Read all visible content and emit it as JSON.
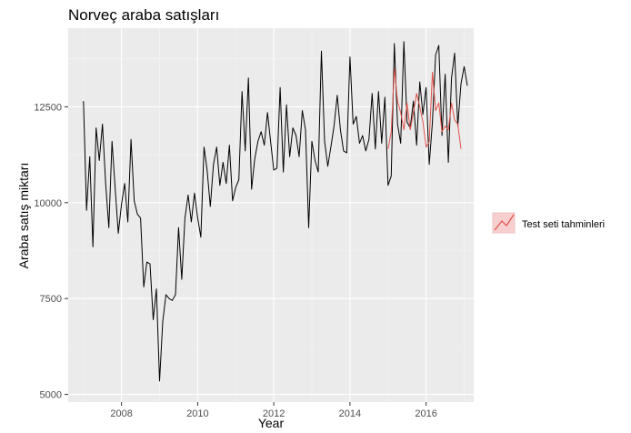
{
  "chart_data": {
    "type": "line",
    "title": "Norveç araba satışları",
    "xlabel": "Year",
    "ylabel": "Araba satış miktarı",
    "xlim": [
      2006.6,
      2017.25
    ],
    "ylim": [
      4800,
      14550
    ],
    "x_ticks": [
      2008,
      2010,
      2012,
      2014,
      2016
    ],
    "x_tick_labels": [
      "2008",
      "2010",
      "2012",
      "2014",
      "2016"
    ],
    "y_ticks": [
      5000,
      7500,
      10000,
      12500
    ],
    "y_tick_labels": [
      "5000",
      "7500",
      "10000",
      "12500"
    ],
    "grid": true,
    "legend_position": "right",
    "legend_entries": [
      "Test seti tahminleri"
    ],
    "colors": {
      "panel": "#ebebeb",
      "grid_major": "#ffffff",
      "grid_minor": "#f5f5f5",
      "actual": "#000000",
      "forecast": "#e0524a",
      "legend_key_fill": "#f7cfcf"
    },
    "series": [
      {
        "start": 2007,
        "step": 0.08333,
        "values": [
          12650,
          9800,
          11200,
          8850,
          11950,
          11100,
          12050,
          10500,
          9350,
          11600,
          10400,
          9200,
          9950,
          10500,
          9500,
          11650,
          10050,
          9700,
          9600,
          7800,
          8450,
          8400,
          6950,
          7750,
          5350,
          6900,
          7600,
          7500,
          7450,
          7600,
          9350,
          8000,
          9600,
          10200,
          9500,
          10250,
          9600,
          9100,
          11450,
          10850,
          9900,
          11000,
          11450,
          10450,
          11050,
          10500,
          11500,
          10050,
          10400,
          10600,
          12900,
          11350,
          13250,
          10350,
          11150,
          11600,
          11850,
          11500,
          12350,
          11600,
          10850,
          10900,
          13000,
          10800,
          12550,
          11200,
          11950,
          11750,
          11200,
          12400,
          11900,
          9350,
          11600,
          11100,
          10800,
          13950,
          11600,
          10950,
          11450,
          12000,
          12800,
          11900,
          11350,
          11300,
          13800,
          12050,
          12250,
          11550,
          11750,
          11350,
          11650,
          12850,
          11400,
          12900,
          11550,
          12750,
          10450,
          10700,
          14150,
          12050,
          11550,
          14200,
          12100,
          11950,
          12650,
          11500,
          13150,
          12300,
          13000,
          11000,
          12100,
          13850,
          14100,
          11750,
          13350,
          11050,
          13250,
          13900,
          12000,
          13100,
          13550,
          13050
        ]
      },
      {
        "name": "Test seti tahminleri",
        "start": 2015.0,
        "step": 0.08333,
        "values": [
          11400,
          11850,
          13500,
          12650,
          12350,
          11900,
          12600,
          11900,
          12350,
          12850,
          12500,
          12100,
          11450,
          11600,
          13400,
          12400,
          12600,
          11850,
          12000,
          11900,
          12600,
          12150,
          12050,
          11400
        ]
      }
    ]
  }
}
